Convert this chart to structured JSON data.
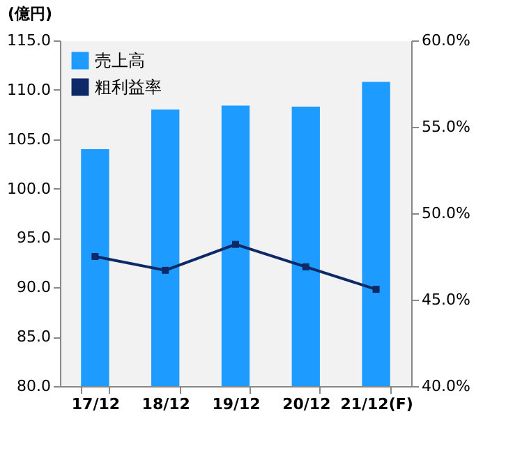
{
  "chart_data": {
    "type": "bar",
    "ylabel": "(億円)",
    "categories": [
      "17/12",
      "18/12",
      "19/12",
      "20/12",
      "21/12(F)"
    ],
    "series": [
      {
        "name": "売上高",
        "color": "#1e9bff",
        "values": [
          104.0,
          108.0,
          108.4,
          108.3,
          110.8
        ]
      },
      {
        "name": "粗利益率",
        "type": "line",
        "axis": "y2",
        "color": "#0d2a66",
        "values": [
          47.5,
          46.7,
          48.2,
          46.9,
          45.6
        ]
      }
    ],
    "ylim": [
      80,
      115
    ],
    "yticks": [
      {
        "value": 80,
        "label": "80.0"
      },
      {
        "value": 85,
        "label": "85.0"
      },
      {
        "value": 90,
        "label": "90.0"
      },
      {
        "value": 95,
        "label": "95.0"
      },
      {
        "value": 100,
        "label": "100.0"
      },
      {
        "value": 105,
        "label": "105.0"
      },
      {
        "value": 110,
        "label": "110.0"
      },
      {
        "value": 115,
        "label": "115.0"
      }
    ],
    "y2lim": [
      40,
      60
    ],
    "y2ticks": [
      {
        "value": 40,
        "label": "40.0%"
      },
      {
        "value": 45,
        "label": "45.0%"
      },
      {
        "value": 50,
        "label": "50.0%"
      },
      {
        "value": 55,
        "label": "55.0%"
      },
      {
        "value": 60,
        "label": "60.0%"
      }
    ],
    "grid": false,
    "legend": "top left",
    "marker": "square",
    "line_style": "solid"
  }
}
